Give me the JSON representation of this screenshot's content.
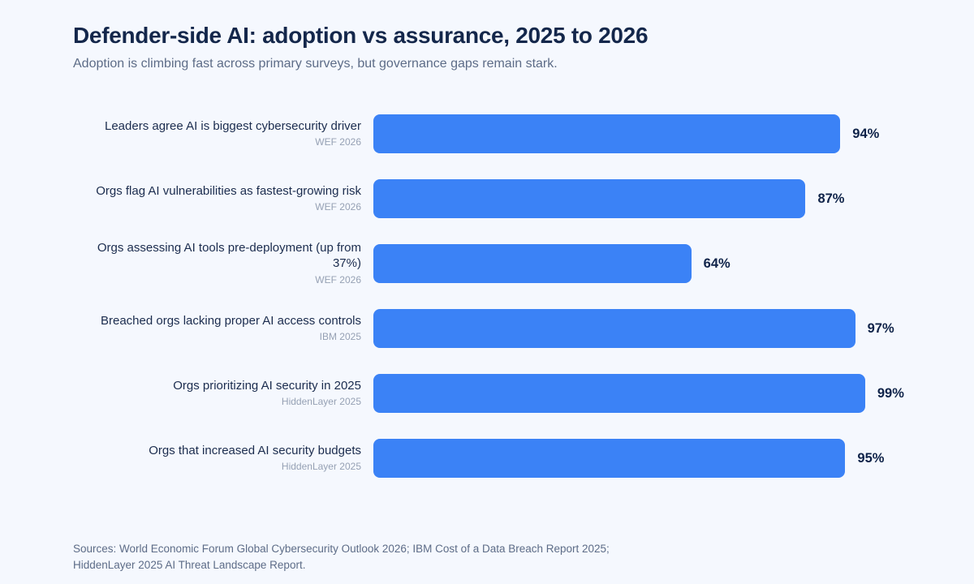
{
  "header": {
    "title": "Defender-side AI: adoption vs assurance, 2025 to 2026",
    "subtitle": "Adoption is climbing fast across primary surveys, but governance gaps remain stark."
  },
  "chart_data": {
    "type": "bar",
    "orientation": "horizontal",
    "title": "Defender-side AI: adoption vs assurance, 2025 to 2026",
    "categories": [
      "Leaders agree AI is biggest cybersecurity driver",
      "Orgs flag AI vulnerabilities as fastest-growing risk",
      "Orgs assessing AI tools pre-deployment (up from 37%)",
      "Breached orgs lacking proper AI access controls",
      "Orgs prioritizing AI security in 2025",
      "Orgs that increased AI security budgets"
    ],
    "sources": [
      "WEF 2026",
      "WEF 2026",
      "WEF 2026",
      "IBM 2025",
      "HiddenLayer 2025",
      "HiddenLayer 2025"
    ],
    "values": [
      94,
      87,
      64,
      97,
      99,
      95
    ],
    "value_labels": [
      "94%",
      "87%",
      "64%",
      "97%",
      "99%",
      "95%"
    ],
    "xlim": [
      0,
      100
    ],
    "grid": false,
    "legend": false,
    "bar_color": "#3b82f6",
    "background_color": "#f5f8fe"
  },
  "footer": {
    "line1": "Sources: World Economic Forum Global Cybersecurity Outlook 2026; IBM Cost of a Data Breach Report 2025;",
    "line2": "HiddenLayer 2025 AI Threat Landscape Report."
  }
}
